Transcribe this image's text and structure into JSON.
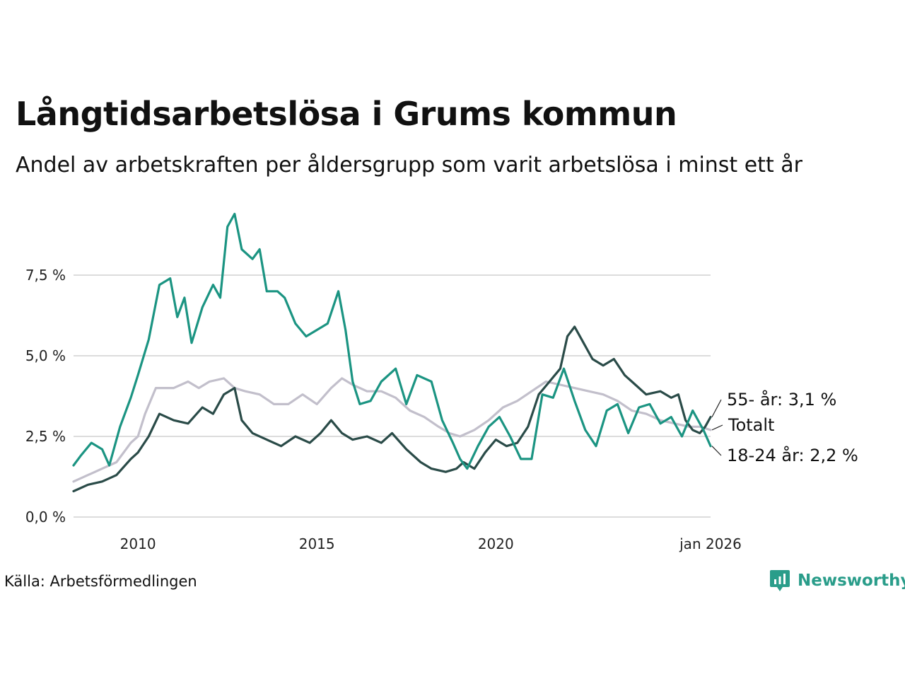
{
  "header": {
    "title": "Långtidsarbetslösa i Grums kommun",
    "subtitle": "Andel av arbetskraften per åldersgrupp som varit arbetslösa i minst ett år"
  },
  "footer": {
    "source": "Källa: Arbetsförmedlingen",
    "brand": "Newsworthy"
  },
  "chart_data": {
    "type": "line",
    "title": "Långtidsarbetslösa i Grums kommun",
    "xlabel": "",
    "ylabel": "",
    "xlim": [
      2008.2,
      2026.0
    ],
    "ylim": [
      0,
      9.6
    ],
    "grid": true,
    "y_ticks": [
      {
        "value": 0,
        "label": "0,0 %"
      },
      {
        "value": 2.5,
        "label": "2,5 %"
      },
      {
        "value": 5,
        "label": "5,0 %"
      },
      {
        "value": 7.5,
        "label": "7,5 %"
      }
    ],
    "x_ticks": [
      {
        "value": 2010,
        "label": "2010"
      },
      {
        "value": 2015,
        "label": "2015"
      },
      {
        "value": 2020,
        "label": "2020"
      },
      {
        "value": 2026,
        "label": "jan 2026"
      }
    ],
    "series": [
      {
        "name": "Totalt",
        "color": "#c2bfcb",
        "end_label": "Totalt",
        "points": [
          [
            2008.2,
            1.1
          ],
          [
            2008.6,
            1.3
          ],
          [
            2009.0,
            1.5
          ],
          [
            2009.4,
            1.7
          ],
          [
            2009.8,
            2.3
          ],
          [
            2010.0,
            2.5
          ],
          [
            2010.2,
            3.2
          ],
          [
            2010.5,
            4.0
          ],
          [
            2011.0,
            4.0
          ],
          [
            2011.4,
            4.2
          ],
          [
            2011.7,
            4.0
          ],
          [
            2012.0,
            4.2
          ],
          [
            2012.4,
            4.3
          ],
          [
            2012.7,
            4.0
          ],
          [
            2013.0,
            3.9
          ],
          [
            2013.4,
            3.8
          ],
          [
            2013.8,
            3.5
          ],
          [
            2014.2,
            3.5
          ],
          [
            2014.6,
            3.8
          ],
          [
            2015.0,
            3.5
          ],
          [
            2015.4,
            4.0
          ],
          [
            2015.7,
            4.3
          ],
          [
            2016.0,
            4.1
          ],
          [
            2016.4,
            3.9
          ],
          [
            2016.8,
            3.9
          ],
          [
            2017.2,
            3.7
          ],
          [
            2017.6,
            3.3
          ],
          [
            2018.0,
            3.1
          ],
          [
            2018.4,
            2.8
          ],
          [
            2018.7,
            2.6
          ],
          [
            2019.0,
            2.5
          ],
          [
            2019.4,
            2.7
          ],
          [
            2019.8,
            3.0
          ],
          [
            2020.2,
            3.4
          ],
          [
            2020.6,
            3.6
          ],
          [
            2021.0,
            3.9
          ],
          [
            2021.4,
            4.2
          ],
          [
            2021.8,
            4.1
          ],
          [
            2022.2,
            4.0
          ],
          [
            2022.6,
            3.9
          ],
          [
            2023.0,
            3.8
          ],
          [
            2023.4,
            3.6
          ],
          [
            2023.8,
            3.3
          ],
          [
            2024.2,
            3.2
          ],
          [
            2024.6,
            3.0
          ],
          [
            2025.0,
            2.9
          ],
          [
            2025.4,
            2.8
          ],
          [
            2025.7,
            2.8
          ],
          [
            2026.0,
            2.7
          ]
        ]
      },
      {
        "name": "55- år",
        "color": "#2a4b48",
        "end_label": "55- år: 3,1 %",
        "points": [
          [
            2008.2,
            0.8
          ],
          [
            2008.6,
            1.0
          ],
          [
            2009.0,
            1.1
          ],
          [
            2009.4,
            1.3
          ],
          [
            2009.8,
            1.8
          ],
          [
            2010.0,
            2.0
          ],
          [
            2010.3,
            2.5
          ],
          [
            2010.6,
            3.2
          ],
          [
            2011.0,
            3.0
          ],
          [
            2011.4,
            2.9
          ],
          [
            2011.8,
            3.4
          ],
          [
            2012.1,
            3.2
          ],
          [
            2012.4,
            3.8
          ],
          [
            2012.7,
            4.0
          ],
          [
            2012.9,
            3.0
          ],
          [
            2013.2,
            2.6
          ],
          [
            2013.6,
            2.4
          ],
          [
            2014.0,
            2.2
          ],
          [
            2014.4,
            2.5
          ],
          [
            2014.8,
            2.3
          ],
          [
            2015.1,
            2.6
          ],
          [
            2015.4,
            3.0
          ],
          [
            2015.7,
            2.6
          ],
          [
            2016.0,
            2.4
          ],
          [
            2016.4,
            2.5
          ],
          [
            2016.8,
            2.3
          ],
          [
            2017.1,
            2.6
          ],
          [
            2017.5,
            2.1
          ],
          [
            2017.9,
            1.7
          ],
          [
            2018.2,
            1.5
          ],
          [
            2018.6,
            1.4
          ],
          [
            2018.9,
            1.5
          ],
          [
            2019.1,
            1.7
          ],
          [
            2019.4,
            1.5
          ],
          [
            2019.7,
            2.0
          ],
          [
            2020.0,
            2.4
          ],
          [
            2020.3,
            2.2
          ],
          [
            2020.6,
            2.3
          ],
          [
            2020.9,
            2.8
          ],
          [
            2021.2,
            3.8
          ],
          [
            2021.5,
            4.2
          ],
          [
            2021.8,
            4.6
          ],
          [
            2022.0,
            5.6
          ],
          [
            2022.2,
            5.9
          ],
          [
            2022.4,
            5.5
          ],
          [
            2022.7,
            4.9
          ],
          [
            2023.0,
            4.7
          ],
          [
            2023.3,
            4.9
          ],
          [
            2023.6,
            4.4
          ],
          [
            2023.9,
            4.1
          ],
          [
            2024.2,
            3.8
          ],
          [
            2024.6,
            3.9
          ],
          [
            2024.9,
            3.7
          ],
          [
            2025.1,
            3.8
          ],
          [
            2025.3,
            3.0
          ],
          [
            2025.5,
            2.7
          ],
          [
            2025.7,
            2.6
          ],
          [
            2025.85,
            2.8
          ],
          [
            2026.0,
            3.1
          ]
        ]
      },
      {
        "name": "18-24 år",
        "color": "#1b9482",
        "end_label": "18-24 år: 2,2 %",
        "points": [
          [
            2008.2,
            1.6
          ],
          [
            2008.4,
            1.9
          ],
          [
            2008.7,
            2.3
          ],
          [
            2009.0,
            2.1
          ],
          [
            2009.2,
            1.6
          ],
          [
            2009.5,
            2.8
          ],
          [
            2009.8,
            3.7
          ],
          [
            2010.0,
            4.4
          ],
          [
            2010.3,
            5.5
          ],
          [
            2010.6,
            7.2
          ],
          [
            2010.9,
            7.4
          ],
          [
            2011.1,
            6.2
          ],
          [
            2011.3,
            6.8
          ],
          [
            2011.5,
            5.4
          ],
          [
            2011.8,
            6.5
          ],
          [
            2012.1,
            7.2
          ],
          [
            2012.3,
            6.8
          ],
          [
            2012.5,
            9.0
          ],
          [
            2012.7,
            9.4
          ],
          [
            2012.9,
            8.3
          ],
          [
            2013.2,
            8.0
          ],
          [
            2013.4,
            8.3
          ],
          [
            2013.6,
            7.0
          ],
          [
            2013.9,
            7.0
          ],
          [
            2014.1,
            6.8
          ],
          [
            2014.4,
            6.0
          ],
          [
            2014.7,
            5.6
          ],
          [
            2015.0,
            5.8
          ],
          [
            2015.3,
            6.0
          ],
          [
            2015.6,
            7.0
          ],
          [
            2015.8,
            5.8
          ],
          [
            2016.0,
            4.2
          ],
          [
            2016.2,
            3.5
          ],
          [
            2016.5,
            3.6
          ],
          [
            2016.8,
            4.2
          ],
          [
            2017.2,
            4.6
          ],
          [
            2017.5,
            3.5
          ],
          [
            2017.8,
            4.4
          ],
          [
            2018.2,
            4.2
          ],
          [
            2018.5,
            3.0
          ],
          [
            2018.8,
            2.3
          ],
          [
            2019.0,
            1.8
          ],
          [
            2019.2,
            1.5
          ],
          [
            2019.5,
            2.2
          ],
          [
            2019.8,
            2.8
          ],
          [
            2020.1,
            3.1
          ],
          [
            2020.4,
            2.5
          ],
          [
            2020.7,
            1.8
          ],
          [
            2021.0,
            1.8
          ],
          [
            2021.3,
            3.8
          ],
          [
            2021.6,
            3.7
          ],
          [
            2021.9,
            4.6
          ],
          [
            2022.2,
            3.6
          ],
          [
            2022.5,
            2.7
          ],
          [
            2022.8,
            2.2
          ],
          [
            2023.1,
            3.3
          ],
          [
            2023.4,
            3.5
          ],
          [
            2023.7,
            2.6
          ],
          [
            2024.0,
            3.4
          ],
          [
            2024.3,
            3.5
          ],
          [
            2024.6,
            2.9
          ],
          [
            2024.9,
            3.1
          ],
          [
            2025.2,
            2.5
          ],
          [
            2025.5,
            3.3
          ],
          [
            2025.8,
            2.7
          ],
          [
            2026.0,
            2.2
          ]
        ]
      }
    ]
  }
}
